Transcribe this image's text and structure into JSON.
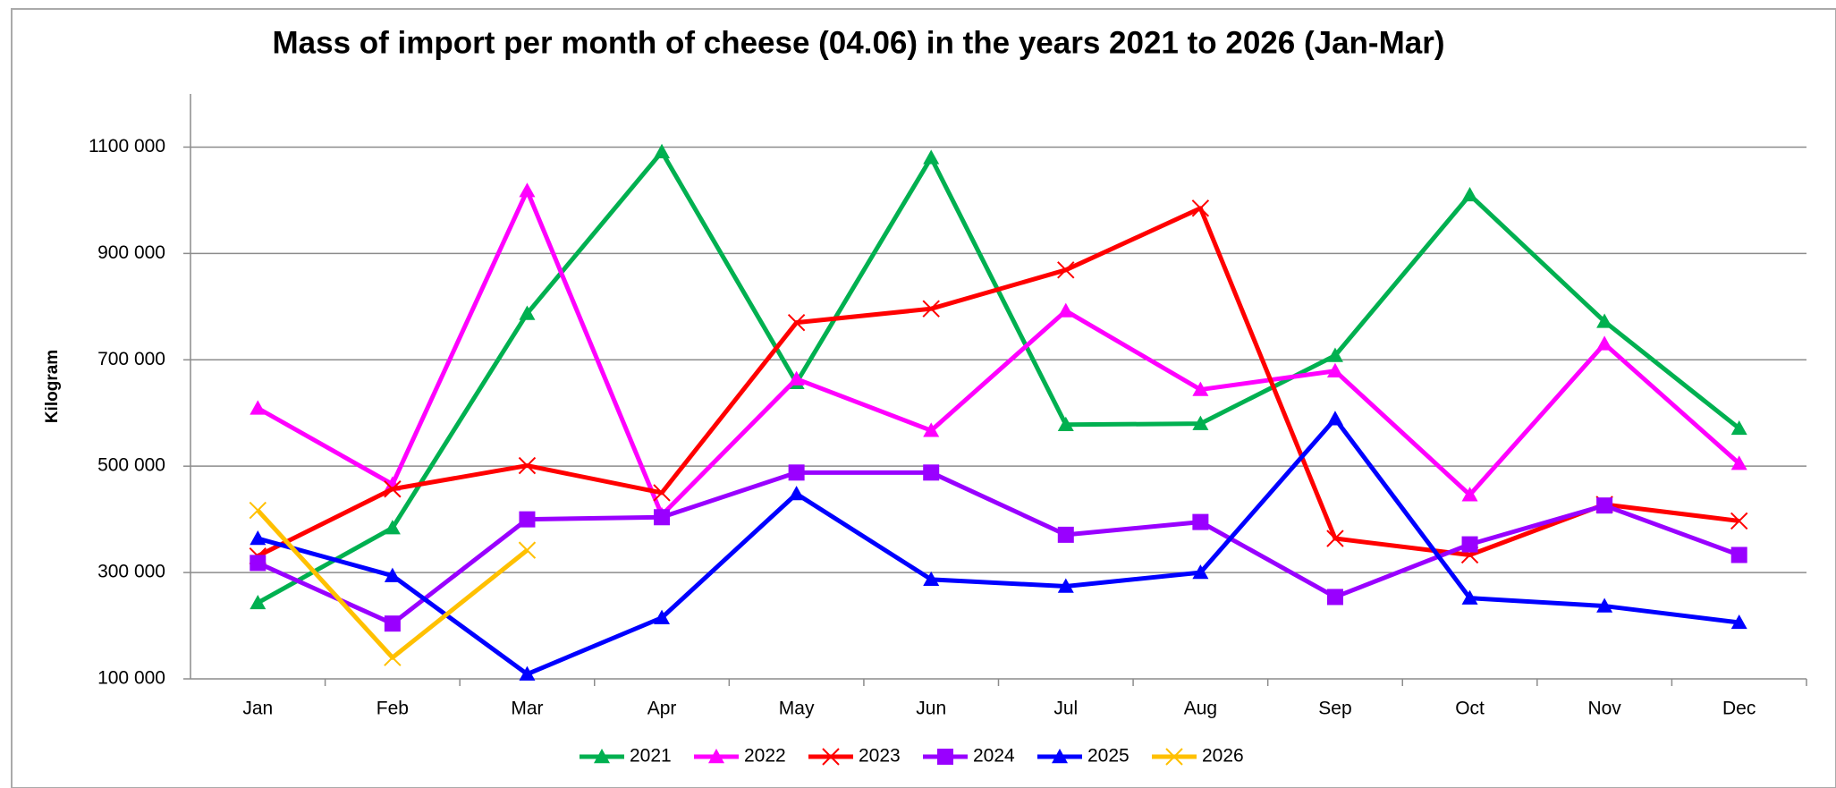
{
  "chart_data": {
    "type": "line",
    "title": "Mass of import per month of cheese (04.06) in the years 2021 to 2026 (Jan-Mar)",
    "y_label": "Kilogram",
    "categories": [
      "Jan",
      "Feb",
      "Mar",
      "Apr",
      "May",
      "Jun",
      "Jul",
      "Aug",
      "Sep",
      "Oct",
      "Nov",
      "Dec"
    ],
    "series": [
      {
        "name": "2021",
        "color": "#00b050",
        "marker": "triangle",
        "values": [
          243000,
          384000,
          787000,
          1091000,
          657000,
          1080000,
          578000,
          580000,
          708000,
          1010000,
          772000,
          571000
        ]
      },
      {
        "name": "2022",
        "color": "#ff00ff",
        "marker": "triangle",
        "values": [
          609000,
          466000,
          1018000,
          408000,
          664000,
          567000,
          792000,
          644000,
          679000,
          446000,
          730000,
          505000
        ]
      },
      {
        "name": "2023",
        "color": "#ff0000",
        "marker": "x",
        "values": [
          331000,
          457000,
          501000,
          450000,
          770000,
          796000,
          869000,
          985000,
          364000,
          333000,
          428000,
          397000
        ]
      },
      {
        "name": "2024",
        "color": "#9900ff",
        "marker": "square",
        "values": [
          318000,
          204000,
          400000,
          404000,
          488000,
          488000,
          371000,
          395000,
          254000,
          353000,
          426000,
          333000
        ]
      },
      {
        "name": "2025",
        "color": "#0000ff",
        "marker": "triangle",
        "values": [
          364000,
          294000,
          109000,
          215000,
          448000,
          287000,
          274000,
          300000,
          589000,
          252000,
          237000,
          206000
        ]
      },
      {
        "name": "2026",
        "color": "#ffc000",
        "marker": "x",
        "values": [
          417000,
          140000,
          342000,
          null,
          null,
          null,
          null,
          null,
          null,
          null,
          null,
          null
        ]
      }
    ],
    "ylim": [
      100000,
      1200000
    ],
    "yticks": [
      {
        "value": 100000,
        "label": "100 000"
      },
      {
        "value": 300000,
        "label": "300 000"
      },
      {
        "value": 500000,
        "label": "500 000"
      },
      {
        "value": 700000,
        "label": "700 000"
      },
      {
        "value": 900000,
        "label": "900 000"
      },
      {
        "value": 1100000,
        "label": "1100 000"
      }
    ],
    "grid": true,
    "legend": "bottom"
  }
}
